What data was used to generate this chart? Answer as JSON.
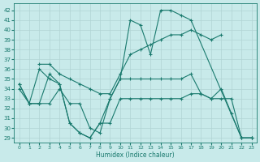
{
  "xlabel": "Humidex (Indice chaleur)",
  "xlim": [
    -0.5,
    23.5
  ],
  "ylim": [
    28.5,
    42.7
  ],
  "yticks": [
    29,
    30,
    31,
    32,
    33,
    34,
    35,
    36,
    37,
    38,
    39,
    40,
    41,
    42
  ],
  "xticks": [
    0,
    1,
    2,
    3,
    4,
    5,
    6,
    7,
    8,
    9,
    10,
    11,
    12,
    13,
    14,
    15,
    16,
    17,
    18,
    19,
    20,
    21,
    22,
    23
  ],
  "bg_color": "#c8eaea",
  "line_color": "#1a7a6e",
  "grid_color": "#b0d4d4",
  "lines": [
    {
      "x": [
        0,
        1,
        2,
        3,
        4,
        5,
        6,
        7,
        8,
        9,
        10,
        11,
        12,
        13,
        14,
        15,
        16,
        17,
        22,
        23
      ],
      "y": [
        34.0,
        32.5,
        36.0,
        35.0,
        34.5,
        30.5,
        29.5,
        29.0,
        30.5,
        33.0,
        35.0,
        41.0,
        40.5,
        37.5,
        42.0,
        42.0,
        41.5,
        41.0,
        29.0,
        29.0
      ]
    },
    {
      "x": [
        2,
        3,
        4,
        5,
        6,
        7,
        8,
        9,
        10,
        11,
        12,
        13,
        14,
        15,
        16,
        17,
        18,
        19,
        20
      ],
      "y": [
        36.5,
        36.5,
        35.5,
        35.0,
        34.5,
        34.0,
        33.5,
        33.5,
        35.5,
        37.5,
        38.0,
        38.5,
        39.0,
        39.5,
        39.5,
        40.0,
        39.5,
        39.0,
        39.5
      ]
    },
    {
      "x": [
        0,
        1,
        2,
        3,
        4,
        5,
        6,
        7,
        8,
        9,
        10,
        11,
        12,
        13,
        14,
        15,
        16,
        17,
        18,
        19,
        20,
        21,
        22,
        23
      ],
      "y": [
        34.5,
        32.5,
        32.5,
        32.5,
        34.0,
        32.5,
        32.5,
        30.0,
        29.5,
        33.0,
        35.0,
        35.0,
        35.0,
        35.0,
        35.0,
        35.0,
        35.0,
        35.5,
        33.5,
        33.0,
        33.0,
        33.0,
        29.0,
        29.0
      ]
    },
    {
      "x": [
        0,
        1,
        2,
        3,
        4,
        5,
        6,
        7,
        8,
        9,
        10,
        11,
        12,
        13,
        14,
        15,
        16,
        17,
        18,
        19,
        20,
        21,
        22,
        23
      ],
      "y": [
        34.5,
        32.5,
        32.5,
        35.5,
        34.5,
        30.5,
        29.5,
        29.0,
        30.5,
        30.5,
        33.0,
        33.0,
        33.0,
        33.0,
        33.0,
        33.0,
        33.0,
        33.5,
        33.5,
        33.0,
        34.0,
        31.5,
        29.0,
        29.0
      ]
    }
  ]
}
